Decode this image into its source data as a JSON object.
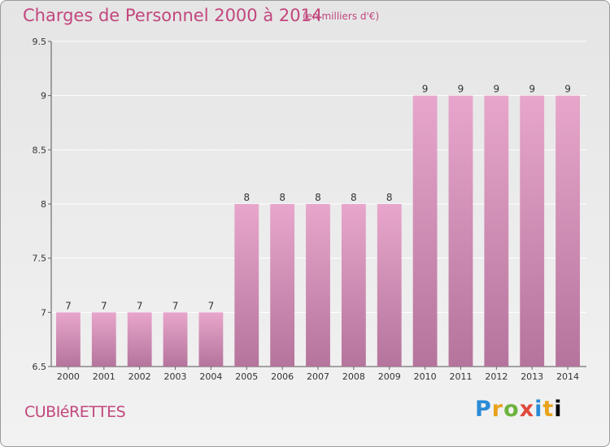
{
  "header": {
    "title": "Charges de Personnel 2000 à 2014",
    "subtitle": "(en milliers d'€)"
  },
  "footer": {
    "town": "CUBIéRETTES",
    "logo": [
      "P",
      "r",
      "o",
      "x",
      "i",
      "t",
      "i"
    ]
  },
  "colors": {
    "title": "#c2477e",
    "bar_top": "#e8a6cc",
    "bar_bottom": "#b5749c",
    "grid": "#ffffff"
  },
  "chart_data": {
    "type": "bar",
    "title": "Charges de Personnel 2000 à 2014",
    "subtitle": "(en milliers d'€)",
    "categories": [
      "2000",
      "2001",
      "2002",
      "2003",
      "2004",
      "2005",
      "2006",
      "2007",
      "2008",
      "2009",
      "2010",
      "2011",
      "2012",
      "2013",
      "2014"
    ],
    "values": [
      7,
      7,
      7,
      7,
      7,
      8,
      8,
      8,
      8,
      8,
      9,
      9,
      9,
      9,
      9
    ],
    "data_labels": [
      "7",
      "7",
      "7",
      "7",
      "7",
      "8",
      "8",
      "8",
      "8",
      "8",
      "9",
      "9",
      "9",
      "9",
      "9"
    ],
    "yticks": [
      "6.5",
      "7",
      "7.5",
      "8",
      "8.5",
      "9",
      "9.5"
    ],
    "ylim": [
      6.5,
      9.5
    ],
    "xlabel": "",
    "ylabel": "",
    "grid": true
  }
}
